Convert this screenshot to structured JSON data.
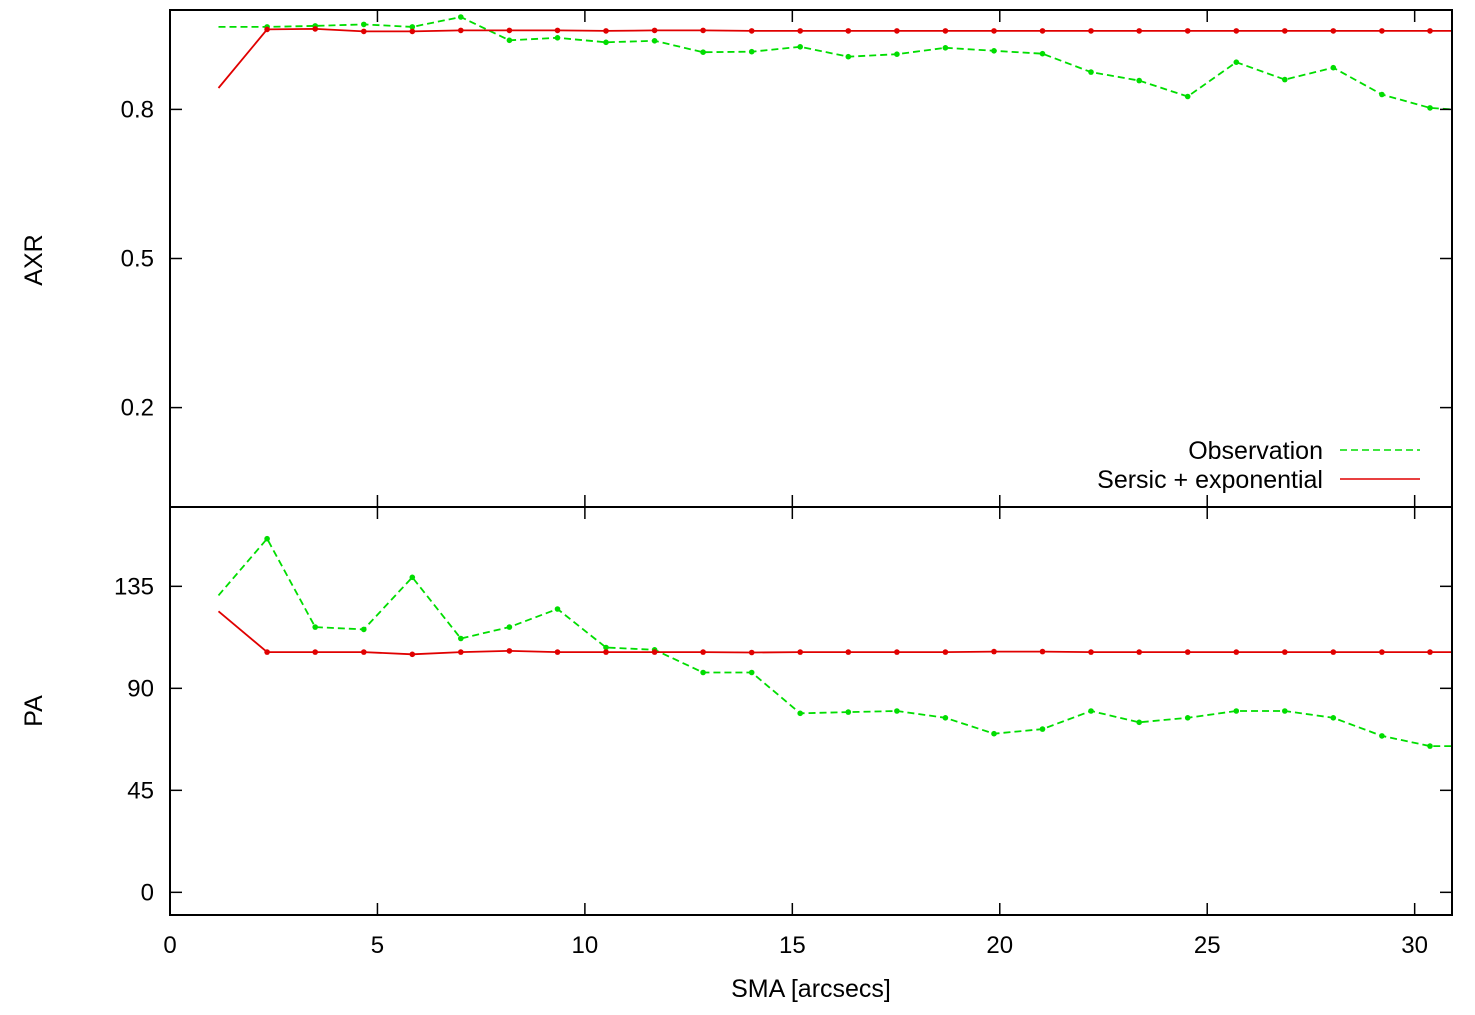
{
  "chart_data": {
    "type": "line",
    "xlabel": "SMA [arcsecs]",
    "xlim": [
      0,
      30.9
    ],
    "xticks": [
      0,
      5,
      10,
      15,
      20,
      25,
      30
    ],
    "colors": {
      "observation": "#00dd00",
      "model": "#e00000"
    },
    "legend": {
      "placement": "bottom-right of upper panel",
      "entries": [
        "Observation",
        "Sersic + exponential"
      ]
    },
    "panels": [
      {
        "ylabel": "AXR",
        "ylim": [
          -0.0,
          1.0
        ],
        "yticks": [
          0.2,
          0.5,
          0.8
        ],
        "series": [
          {
            "name": "Observation",
            "style": "dashed",
            "x": [
              1.17,
              2.34,
              3.5,
              4.67,
              5.84,
              7.01,
              8.18,
              9.34,
              10.51,
              11.68,
              12.85,
              14.02,
              15.19,
              16.35,
              17.52,
              18.69,
              19.86,
              21.03,
              22.2,
              23.36,
              24.53,
              25.7,
              26.87,
              28.04,
              29.21,
              30.37,
              30.9
            ],
            "y": [
              0.966,
              0.966,
              0.968,
              0.971,
              0.966,
              0.986,
              0.939,
              0.944,
              0.935,
              0.938,
              0.915,
              0.916,
              0.926,
              0.906,
              0.911,
              0.924,
              0.918,
              0.912,
              0.875,
              0.858,
              0.826,
              0.895,
              0.86,
              0.884,
              0.83,
              0.803,
              0.8
            ]
          },
          {
            "name": "Sersic + exponential",
            "style": "solid",
            "x": [
              1.17,
              2.34,
              3.5,
              4.67,
              5.84,
              7.01,
              8.18,
              9.34,
              10.51,
              11.68,
              12.85,
              14.02,
              15.19,
              16.35,
              17.52,
              18.69,
              19.86,
              21.03,
              22.2,
              23.36,
              24.53,
              25.7,
              26.87,
              28.04,
              29.21,
              30.37,
              30.9
            ],
            "y": [
              0.843,
              0.961,
              0.962,
              0.957,
              0.957,
              0.959,
              0.959,
              0.959,
              0.958,
              0.959,
              0.959,
              0.958,
              0.958,
              0.958,
              0.958,
              0.958,
              0.958,
              0.958,
              0.958,
              0.958,
              0.958,
              0.958,
              0.958,
              0.958,
              0.958,
              0.958,
              0.958
            ]
          }
        ]
      },
      {
        "ylabel": "PA",
        "ylim": [
          -10,
          170
        ],
        "yticks": [
          0,
          45,
          90,
          135
        ],
        "series": [
          {
            "name": "Observation",
            "style": "dashed",
            "x": [
              1.17,
              2.34,
              3.5,
              4.67,
              5.84,
              7.01,
              8.18,
              9.34,
              10.51,
              11.68,
              12.85,
              14.02,
              15.19,
              16.35,
              17.52,
              18.69,
              19.86,
              21.03,
              22.2,
              23.36,
              24.53,
              25.7,
              26.87,
              28.04,
              29.21,
              30.37,
              30.9
            ],
            "y": [
              131,
              156,
              117,
              116,
              139,
              112,
              117,
              125,
              108,
              107,
              97,
              97,
              79,
              79.5,
              80,
              77,
              70,
              72,
              80,
              75,
              77,
              80,
              80,
              77,
              69,
              64.5,
              64.5
            ]
          },
          {
            "name": "Sersic + exponential",
            "style": "solid",
            "x": [
              1.17,
              2.34,
              3.5,
              4.67,
              5.84,
              7.01,
              8.18,
              9.34,
              10.51,
              11.68,
              12.85,
              14.02,
              15.19,
              16.35,
              17.52,
              18.69,
              19.86,
              21.03,
              22.2,
              23.36,
              24.53,
              25.7,
              26.87,
              28.04,
              29.21,
              30.37,
              30.9
            ],
            "y": [
              124,
              106,
              106,
              106,
              105,
              106,
              106.5,
              106,
              106,
              106,
              106,
              105.8,
              106,
              106,
              106,
              106,
              106.2,
              106.2,
              106,
              106,
              106,
              106,
              106,
              106,
              106,
              106,
              106
            ]
          }
        ]
      }
    ]
  }
}
